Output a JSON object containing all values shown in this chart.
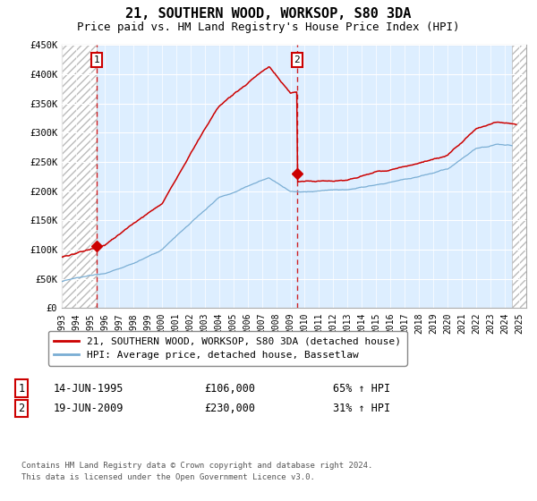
{
  "title": "21, SOUTHERN WOOD, WORKSOP, S80 3DA",
  "subtitle": "Price paid vs. HM Land Registry's House Price Index (HPI)",
  "legend_line1": "21, SOUTHERN WOOD, WORKSOP, S80 3DA (detached house)",
  "legend_line2": "HPI: Average price, detached house, Bassetlaw",
  "transaction1_label": "1",
  "transaction1_date": "14-JUN-1995",
  "transaction1_price": "£106,000",
  "transaction1_hpi": "65% ↑ HPI",
  "transaction1_year": 1995.45,
  "transaction1_value": 106000,
  "transaction2_label": "2",
  "transaction2_date": "19-JUN-2009",
  "transaction2_price": "£230,000",
  "transaction2_hpi": "31% ↑ HPI",
  "transaction2_year": 2009.45,
  "transaction2_value": 230000,
  "footer": "Contains HM Land Registry data © Crown copyright and database right 2024.\nThis data is licensed under the Open Government Licence v3.0.",
  "xmin": 1993.0,
  "xmax": 2025.5,
  "ymin": 0,
  "ymax": 450000,
  "hatch_left_end": 1995.45,
  "hatch_right_start": 2024.5,
  "plot_bg_color": "#ddeeff",
  "grid_color": "#ffffff",
  "red_line_color": "#cc0000",
  "blue_line_color": "#7aaed4",
  "title_fontsize": 11,
  "subtitle_fontsize": 9
}
